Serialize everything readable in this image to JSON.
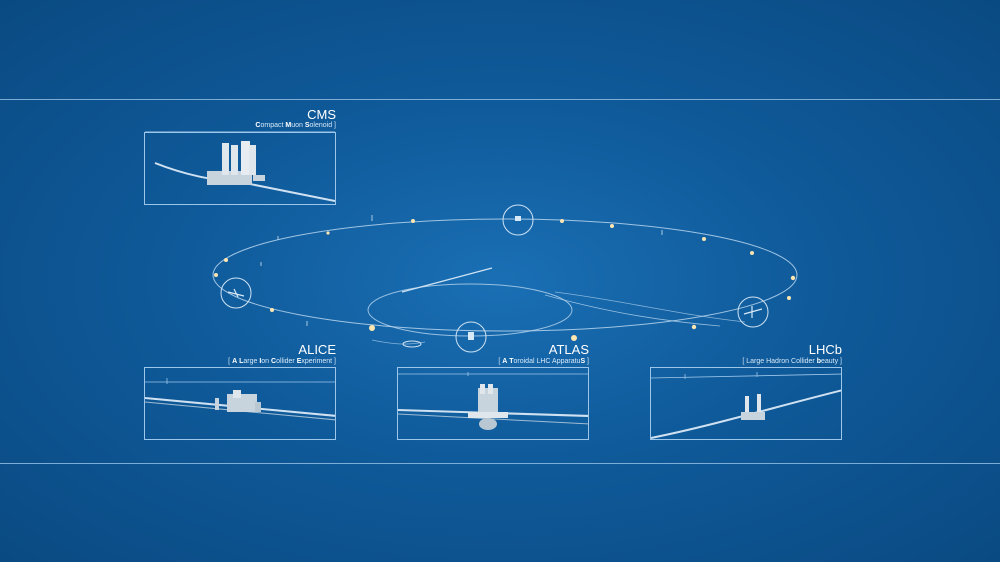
{
  "colors": {
    "background": "#0f5a9a",
    "line": "#9cc6ea",
    "glow": "#ffe6b0"
  },
  "detectors": {
    "cms": {
      "name": "CMS",
      "subtitle_parts": [
        [
          "C",
          "ompact "
        ],
        [
          "M",
          "uon "
        ],
        [
          "S",
          "olenoid ]"
        ]
      ]
    },
    "alice": {
      "name": "ALICE",
      "subtitle_parts": [
        [
          "",
          "[ "
        ],
        [
          "A",
          " "
        ],
        [
          "L",
          "arge "
        ],
        [
          "I",
          "on "
        ],
        [
          "C",
          "ollider "
        ],
        [
          "E",
          "xperiment ]"
        ]
      ]
    },
    "atlas": {
      "name": "ATLAS",
      "subtitle_parts": [
        [
          "",
          "[ "
        ],
        [
          "A",
          " "
        ],
        [
          "T",
          "oroidal LHC Apparatu"
        ],
        [
          "S",
          " ]"
        ]
      ]
    },
    "lhcb": {
      "name": "LHCb",
      "subtitle_parts": [
        [
          "",
          "[ Large Hadron Collider "
        ],
        [
          "b",
          "eauty ]"
        ]
      ]
    }
  }
}
